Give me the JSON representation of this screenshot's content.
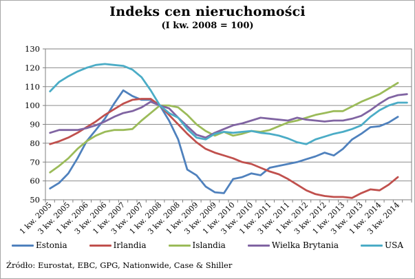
{
  "figure": {
    "title": "Indeks cen nieruchomości",
    "subtitle": "(I kw. 2008 = 100)",
    "source": "Źródło:  Eurostat, EBC, GPG, Nationwide, Case & Shiller"
  },
  "chart_data": {
    "type": "line",
    "title": "Indeks cen nieruchomości",
    "subtitle": "(I kw. 2008 = 100)",
    "grid": true,
    "legend_position": "bottom",
    "ylim": [
      50,
      130
    ],
    "y_ticks": [
      50,
      60,
      70,
      80,
      90,
      100,
      110,
      120,
      130
    ],
    "x_slots": 40,
    "label_every": 2,
    "x_labels": [
      "1 kw. 2005",
      "3 kw. 2005",
      "1 kw. 2006",
      "3 kw. 2006",
      "1 kw. 2007",
      "3 kw. 2007",
      "1 kw. 2008",
      "3 kw. 2008",
      "1 kw. 2009",
      "3 kw. 2009",
      "1 kw. 2010",
      "3 kw. 2010",
      "1 kw. 2011",
      "3 kw. 2011",
      "1 kw. 2012",
      "3 kw. 2012",
      "1 kw. 2013",
      "3 kw. 2013",
      "1 kw. 2014",
      "3 kw. 2014"
    ],
    "series": [
      {
        "name": "Estonia",
        "color": "#4F81BD",
        "values": [
          56,
          59,
          64,
          72,
          81,
          87,
          93,
          101,
          108,
          105,
          103,
          103,
          100,
          92,
          82,
          66,
          63,
          57,
          54,
          53.5,
          61,
          62,
          64,
          63,
          67,
          68,
          69,
          70,
          71.5,
          73,
          75,
          73.5,
          77,
          82,
          85,
          88.5,
          89,
          91,
          94
        ]
      },
      {
        "name": "Irlandia",
        "color": "#C0504D",
        "values": [
          79.5,
          81,
          83,
          85.5,
          88.5,
          91.5,
          95,
          98,
          101,
          103,
          103.5,
          103.5,
          100,
          95,
          90,
          85,
          80.5,
          77,
          75,
          73.5,
          72,
          70,
          69,
          67,
          65,
          63.5,
          61,
          58,
          55,
          53,
          52,
          51.5,
          51.5,
          51,
          53.5,
          55.5,
          55,
          58,
          62
        ]
      },
      {
        "name": "Islandia",
        "color": "#9BBB59",
        "values": [
          64.5,
          68,
          72,
          77,
          81,
          84,
          86,
          87,
          87,
          87.5,
          92,
          96,
          100,
          100,
          99,
          95,
          90,
          86.5,
          84,
          86,
          84,
          85,
          86.5,
          86,
          87,
          89,
          91,
          92,
          93.5,
          95,
          96,
          97,
          97,
          99.5,
          102,
          104,
          106,
          109,
          112
        ]
      },
      {
        "name": "Wielka Brytania",
        "color": "#8064A2",
        "values": [
          85.5,
          87,
          87,
          87,
          88,
          89.5,
          91.5,
          94,
          96,
          97,
          99,
          102,
          100,
          98.5,
          93.5,
          89,
          84.5,
          83,
          85.5,
          87.5,
          89.5,
          90.5,
          92,
          93.5,
          93,
          92.5,
          92,
          93.5,
          92.5,
          92,
          91.5,
          92,
          92,
          93,
          94.5,
          97.5,
          101,
          104,
          105.5,
          106
        ]
      },
      {
        "name": "USA",
        "color": "#4BACC6",
        "values": [
          107.5,
          112.5,
          115.5,
          118,
          120,
          121.5,
          122,
          121.5,
          121,
          119,
          115,
          108,
          100,
          96,
          93.5,
          87.5,
          83,
          82,
          85,
          86,
          85.5,
          86,
          86.5,
          85.5,
          85,
          84,
          82.5,
          80.5,
          79.5,
          82,
          83.5,
          85,
          86,
          87.5,
          89.5,
          94,
          97.5,
          100,
          101.5,
          101.5
        ]
      }
    ]
  }
}
